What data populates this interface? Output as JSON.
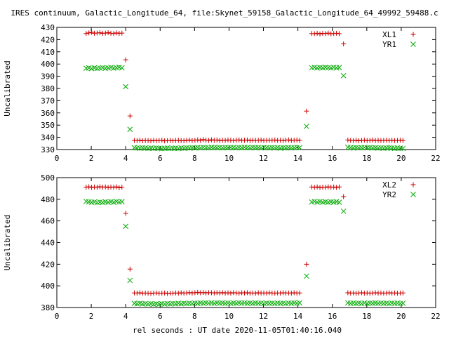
{
  "figure": {
    "title": "IRES continuum, Galactic_Longitude_64, file:Skynet_59158_Galactic_Longitude_64_49992_59488.c",
    "xlabel": "rel seconds : UT date 2020-11-05T01:40:16.040"
  },
  "chart_data": [
    {
      "type": "scatter",
      "ylabel": "Uncalibrated",
      "xlim": [
        0,
        22
      ],
      "ylim": [
        330,
        430
      ],
      "xticks": [
        0,
        2,
        4,
        6,
        8,
        10,
        12,
        14,
        16,
        18,
        20,
        22
      ],
      "yticks": [
        330,
        340,
        350,
        360,
        370,
        380,
        390,
        400,
        410,
        420,
        430
      ],
      "legend_position": "top-right",
      "series": [
        {
          "name": "XL1",
          "marker": "+",
          "color": "#cc0000",
          "x": [
            1.7,
            1.86,
            2.02,
            2.18,
            2.34,
            2.5,
            2.66,
            2.82,
            2.98,
            3.14,
            3.3,
            3.46,
            3.62,
            3.78,
            4.0,
            4.25,
            4.5,
            4.66,
            4.82,
            4.98,
            5.14,
            5.3,
            5.46,
            5.62,
            5.78,
            5.94,
            6.1,
            6.26,
            6.42,
            6.58,
            6.74,
            6.9,
            7.06,
            7.22,
            7.38,
            7.54,
            7.7,
            7.86,
            8.02,
            8.18,
            8.34,
            8.5,
            8.66,
            8.82,
            8.98,
            9.14,
            9.3,
            9.46,
            9.62,
            9.78,
            9.94,
            10.1,
            10.26,
            10.42,
            10.58,
            10.74,
            10.9,
            11.06,
            11.22,
            11.38,
            11.54,
            11.7,
            11.86,
            12.02,
            12.18,
            12.34,
            12.5,
            12.66,
            12.82,
            12.98,
            13.14,
            13.3,
            13.46,
            13.62,
            13.78,
            13.94,
            14.1,
            14.5,
            14.8,
            14.96,
            15.12,
            15.28,
            15.44,
            15.6,
            15.76,
            15.92,
            16.08,
            16.24,
            16.4,
            16.65,
            16.9,
            17.06,
            17.22,
            17.38,
            17.54,
            17.7,
            17.86,
            18.02,
            18.18,
            18.34,
            18.5,
            18.66,
            18.82,
            18.98,
            19.14,
            19.3,
            19.46,
            19.62,
            19.78,
            19.94,
            20.1
          ],
          "y": [
            425,
            425.5,
            426,
            425.2,
            425.4,
            425.6,
            425.1,
            425.3,
            425.7,
            425.2,
            425,
            425.5,
            425.1,
            425.3,
            403.5,
            357.5,
            337.5,
            337.3,
            337.6,
            337.2,
            337.4,
            337.3,
            337.1,
            337.5,
            337.2,
            337.4,
            337.6,
            337.1,
            337.3,
            337.5,
            337.2,
            337.4,
            337.6,
            337.3,
            337.2,
            337.5,
            337.8,
            337.4,
            337.6,
            337.9,
            337.5,
            338.2,
            337.7,
            337.5,
            338,
            337.6,
            337.8,
            337.4,
            337.7,
            337.5,
            337.8,
            337.6,
            337.4,
            337.7,
            337.9,
            337.5,
            337.6,
            337.8,
            337.4,
            337.7,
            337.5,
            337.6,
            337.8,
            337.4,
            337.5,
            337.7,
            337.6,
            337.8,
            337.5,
            337.6,
            337.4,
            337.7,
            337.9,
            337.5,
            337.6,
            337.8,
            337.5,
            361.5,
            425,
            424.8,
            425.2,
            424.6,
            425.1,
            424.9,
            425.3,
            424.7,
            425,
            425.2,
            424.8,
            416.5,
            337.8,
            337.5,
            337.3,
            337.6,
            337.2,
            337.5,
            337.7,
            337.3,
            337.5,
            337.8,
            337.4,
            337.6,
            337.3,
            337.5,
            337.7,
            337.4,
            337.6,
            337.3,
            337.5,
            337.7,
            337.4
          ]
        },
        {
          "name": "YR1",
          "marker": "x",
          "color": "#00aa00",
          "x": [
            1.7,
            1.86,
            2.02,
            2.18,
            2.34,
            2.5,
            2.66,
            2.82,
            2.98,
            3.14,
            3.3,
            3.46,
            3.62,
            3.78,
            4.0,
            4.25,
            4.5,
            4.66,
            4.82,
            4.98,
            5.14,
            5.3,
            5.46,
            5.62,
            5.78,
            5.94,
            6.1,
            6.26,
            6.42,
            6.58,
            6.74,
            6.9,
            7.06,
            7.22,
            7.38,
            7.54,
            7.7,
            7.86,
            8.02,
            8.18,
            8.34,
            8.5,
            8.66,
            8.82,
            8.98,
            9.14,
            9.3,
            9.46,
            9.62,
            9.78,
            9.94,
            10.1,
            10.26,
            10.42,
            10.58,
            10.74,
            10.9,
            11.06,
            11.22,
            11.38,
            11.54,
            11.7,
            11.86,
            12.02,
            12.18,
            12.34,
            12.5,
            12.66,
            12.82,
            12.98,
            13.14,
            13.3,
            13.46,
            13.62,
            13.78,
            13.94,
            14.1,
            14.5,
            14.8,
            14.96,
            15.12,
            15.28,
            15.44,
            15.6,
            15.76,
            15.92,
            16.08,
            16.24,
            16.4,
            16.65,
            16.9,
            17.06,
            17.22,
            17.38,
            17.54,
            17.7,
            17.86,
            18.02,
            18.18,
            18.34,
            18.5,
            18.66,
            18.82,
            18.98,
            19.14,
            19.3,
            19.46,
            19.62,
            19.78,
            19.94,
            20.1
          ],
          "y": [
            396.5,
            396.8,
            396.3,
            396.9,
            396.4,
            396.7,
            397,
            396.5,
            396.8,
            397.2,
            396.6,
            397,
            397.3,
            396.9,
            381.5,
            346.5,
            331.5,
            331.3,
            331.1,
            331.4,
            331.2,
            331,
            331.3,
            330.9,
            331.2,
            331.1,
            330.8,
            331,
            331.3,
            330.9,
            331.1,
            331.2,
            330.9,
            331.3,
            331.1,
            331.4,
            331.2,
            331.5,
            331.3,
            331.6,
            331.4,
            331.7,
            331.5,
            331.4,
            331.8,
            331.6,
            331.5,
            331.7,
            331.4,
            331.6,
            331.5,
            331.7,
            331.6,
            331.4,
            331.7,
            331.5,
            331.8,
            331.6,
            331.4,
            331.7,
            331.5,
            331.6,
            331.4,
            331.7,
            331.5,
            331.3,
            331.6,
            331.4,
            331.5,
            331.2,
            331.5,
            331.3,
            331.6,
            331.4,
            331.5,
            331.7,
            331.6,
            349,
            397,
            397.2,
            396.8,
            397.1,
            396.9,
            397.3,
            397,
            396.8,
            397.2,
            396.9,
            397.1,
            390.5,
            331.8,
            331.5,
            331.3,
            331.6,
            331.4,
            331.5,
            331.7,
            331.4,
            331.6,
            331.3,
            331.5,
            331.2,
            331.4,
            331.1,
            331.3,
            331.5,
            331.2,
            331,
            331.3,
            331.1,
            330.9
          ]
        }
      ]
    },
    {
      "type": "scatter",
      "ylabel": "Uncalibrated",
      "xlim": [
        0,
        22
      ],
      "ylim": [
        380,
        500
      ],
      "xticks": [
        0,
        2,
        4,
        6,
        8,
        10,
        12,
        14,
        16,
        18,
        20,
        22
      ],
      "yticks": [
        380,
        400,
        420,
        440,
        460,
        480,
        500
      ],
      "legend_position": "top-right",
      "series": [
        {
          "name": "XL2",
          "marker": "+",
          "color": "#cc0000",
          "x": [
            1.7,
            1.86,
            2.02,
            2.18,
            2.34,
            2.5,
            2.66,
            2.82,
            2.98,
            3.14,
            3.3,
            3.46,
            3.62,
            3.78,
            4.0,
            4.25,
            4.5,
            4.66,
            4.82,
            4.98,
            5.14,
            5.3,
            5.46,
            5.62,
            5.78,
            5.94,
            6.1,
            6.26,
            6.42,
            6.58,
            6.74,
            6.9,
            7.06,
            7.22,
            7.38,
            7.54,
            7.7,
            7.86,
            8.02,
            8.18,
            8.34,
            8.5,
            8.66,
            8.82,
            8.98,
            9.14,
            9.3,
            9.46,
            9.62,
            9.78,
            9.94,
            10.1,
            10.26,
            10.42,
            10.58,
            10.74,
            10.9,
            11.06,
            11.22,
            11.38,
            11.54,
            11.7,
            11.86,
            12.02,
            12.18,
            12.34,
            12.5,
            12.66,
            12.82,
            12.98,
            13.14,
            13.3,
            13.46,
            13.62,
            13.78,
            13.94,
            14.1,
            14.5,
            14.8,
            14.96,
            15.12,
            15.28,
            15.44,
            15.6,
            15.76,
            15.92,
            16.08,
            16.24,
            16.4,
            16.65,
            16.9,
            17.06,
            17.22,
            17.38,
            17.54,
            17.7,
            17.86,
            18.02,
            18.18,
            18.34,
            18.5,
            18.66,
            18.82,
            18.98,
            19.14,
            19.3,
            19.46,
            19.62,
            19.78,
            19.94,
            20.1
          ],
          "y": [
            491.2,
            491.5,
            491,
            491.3,
            491.1,
            491.6,
            491.2,
            491.4,
            490.9,
            491.3,
            491,
            491.5,
            490.6,
            491.2,
            467,
            415.5,
            393.5,
            393.3,
            393.6,
            393.1,
            393.4,
            393.2,
            393,
            393.3,
            393.5,
            393.1,
            393.2,
            393.4,
            393,
            393.3,
            393.1,
            393.5,
            393.2,
            393.6,
            393.3,
            393.5,
            393.8,
            393.4,
            393.7,
            394,
            393.6,
            393.9,
            393.5,
            393.8,
            393.6,
            393.4,
            393.7,
            393.5,
            393.8,
            393.4,
            393.6,
            393.3,
            393.7,
            393.5,
            393.2,
            393.6,
            393.4,
            393.7,
            393.3,
            393.5,
            393.2,
            393.6,
            393.4,
            393.5,
            393.3,
            393.6,
            393.4,
            393.2,
            393.5,
            393.3,
            393.6,
            393.4,
            393.5,
            393.3,
            393.6,
            393.4,
            393.5,
            420,
            491.3,
            491,
            491.4,
            490.8,
            491.2,
            491,
            491.5,
            491.1,
            491.3,
            490.9,
            491.4,
            482.5,
            393.6,
            393.3,
            393.5,
            393.2,
            393.4,
            393.6,
            393.3,
            393.5,
            393.2,
            393.4,
            393.6,
            393.3,
            393.5,
            393.2,
            393.4,
            393.6,
            393.3,
            393.5,
            393.2,
            393.4,
            393.5
          ]
        },
        {
          "name": "YR2",
          "marker": "x",
          "color": "#00aa00",
          "x": [
            1.7,
            1.86,
            2.02,
            2.18,
            2.34,
            2.5,
            2.66,
            2.82,
            2.98,
            3.14,
            3.3,
            3.46,
            3.62,
            3.78,
            4.0,
            4.25,
            4.5,
            4.66,
            4.82,
            4.98,
            5.14,
            5.3,
            5.46,
            5.62,
            5.78,
            5.94,
            6.1,
            6.26,
            6.42,
            6.58,
            6.74,
            6.9,
            7.06,
            7.22,
            7.38,
            7.54,
            7.7,
            7.86,
            8.02,
            8.18,
            8.34,
            8.5,
            8.66,
            8.82,
            8.98,
            9.14,
            9.3,
            9.46,
            9.62,
            9.78,
            9.94,
            10.1,
            10.26,
            10.42,
            10.58,
            10.74,
            10.9,
            11.06,
            11.22,
            11.38,
            11.54,
            11.7,
            11.86,
            12.02,
            12.18,
            12.34,
            12.5,
            12.66,
            12.82,
            12.98,
            13.14,
            13.3,
            13.46,
            13.62,
            13.78,
            13.94,
            14.1,
            14.5,
            14.8,
            14.96,
            15.12,
            15.28,
            15.44,
            15.6,
            15.76,
            15.92,
            16.08,
            16.24,
            16.4,
            16.65,
            16.9,
            17.06,
            17.22,
            17.38,
            17.54,
            17.7,
            17.86,
            18.02,
            18.18,
            18.34,
            18.5,
            18.66,
            18.82,
            18.98,
            19.14,
            19.3,
            19.46,
            19.62,
            19.78,
            19.94,
            20.1
          ],
          "y": [
            478,
            477.6,
            477.2,
            477.5,
            477,
            477.4,
            477.1,
            477.6,
            477.3,
            477.7,
            477.2,
            477.9,
            477.5,
            477.8,
            455,
            405,
            383.8,
            383.5,
            383.9,
            383.3,
            383.6,
            383.2,
            383.5,
            383,
            383.4,
            383.1,
            383.5,
            383.2,
            383.6,
            383.3,
            383.7,
            383.4,
            383.8,
            383.5,
            383.9,
            383.6,
            384,
            383.7,
            384.1,
            383.8,
            384.2,
            383.9,
            384.3,
            384,
            384.2,
            383.9,
            384.3,
            384,
            384.2,
            383.9,
            384.1,
            383.8,
            384.2,
            383.9,
            384.3,
            384,
            384.2,
            383.9,
            384.1,
            383.8,
            384.2,
            383.9,
            384,
            383.7,
            384.1,
            383.8,
            384,
            383.7,
            384.1,
            383.8,
            384,
            383.7,
            384.1,
            383.9,
            384.2,
            384,
            384.3,
            409,
            477.5,
            477.9,
            477.4,
            477.8,
            477.3,
            477.7,
            477.2,
            477.6,
            477.3,
            477.7,
            477.2,
            469,
            384.2,
            383.9,
            384.1,
            383.8,
            384,
            383.7,
            384.1,
            383.8,
            384,
            383.9,
            384.2,
            383.9,
            384.1,
            383.8,
            384,
            383.7,
            384.1,
            383.8,
            384,
            383.7,
            383.9
          ]
        }
      ]
    }
  ]
}
